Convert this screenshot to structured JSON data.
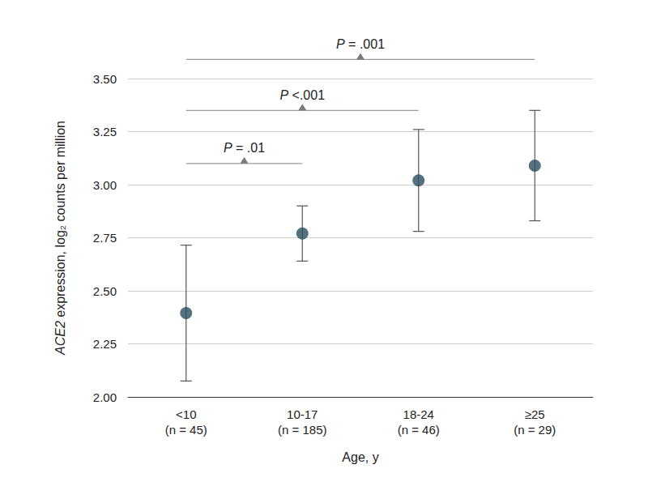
{
  "chart_data": {
    "type": "scatter",
    "categories": [
      "<10\n(n = 45)",
      "10-17\n(n = 185)",
      "18-24\n(n = 46)",
      "≥25\n(n = 29)"
    ],
    "values": [
      2.395,
      2.77,
      3.02,
      3.09
    ],
    "ci_low": [
      2.075,
      2.64,
      2.78,
      2.83
    ],
    "ci_high": [
      2.715,
      2.9,
      3.26,
      3.35
    ],
    "color": "#2b4e5e",
    "marker": "circle",
    "x_label": "Age, y",
    "y_label": "ACE2 expression, log₂ counts per million",
    "ylim": [
      2,
      3.5
    ],
    "yticks": [
      {
        "value": 2,
        "label": "2.00"
      },
      {
        "value": 2.25,
        "label": "2.25"
      },
      {
        "value": 2.5,
        "label": "2.50"
      },
      {
        "value": 2.75,
        "label": "2.75"
      },
      {
        "value": 3,
        "label": "3.00"
      },
      {
        "value": 3.25,
        "label": "3.25"
      },
      {
        "value": 3.5,
        "label": "3.50"
      }
    ],
    "grid": true,
    "annotations": [
      {
        "label": "P = .01",
        "from": "<10\n(n = 45)",
        "to": "10-17\n(n = 185)",
        "y": 3.1
      },
      {
        "label": "P <.001",
        "from": "<10\n(n = 45)",
        "to": "18-24\n(n = 46)",
        "y": 3.35
      },
      {
        "label": "P = .001",
        "from": "<10\n(n = 45)",
        "to": "≥25\n(n = 29)",
        "y": 3.59
      }
    ]
  }
}
